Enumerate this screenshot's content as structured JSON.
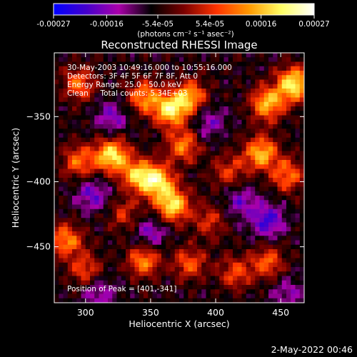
{
  "colorbar": {
    "ticks": [
      "-0.00027",
      "-0.00016",
      "-5.4e-05",
      "5.4e-05",
      "0.00016",
      "0.00027"
    ],
    "tick_values": [
      -0.00027,
      -0.00016,
      -5.4e-05,
      5.4e-05,
      0.00016,
      0.00027
    ],
    "range": [
      -0.00027,
      0.00027
    ],
    "units": "(photons cm⁻² s⁻¹ asec⁻²)",
    "colors": [
      "#0000ff",
      "#4400cc",
      "#aa00aa",
      "#000000",
      "#7a0000",
      "#ff3300",
      "#ff9900",
      "#ffff66",
      "#ffffff"
    ]
  },
  "chart_data": {
    "type": "heatmap",
    "title": "Reconstructed RHESSI Image",
    "xlabel": "Heliocentric X (arcsec)",
    "ylabel": "Heliocentric Y (arcsec)",
    "x_ticks": [
      300,
      350,
      400,
      450
    ],
    "y_ticks": [
      -350,
      -400,
      -450
    ],
    "xlim": [
      276,
      468
    ],
    "ylim": [
      -493,
      -301
    ],
    "annotations": [
      "30-May-2003 10:49:16.000 to 10:55:16.000",
      "Detectors: 3F 4F 5F 6F 7F 8F, Att 0",
      "Energy Range: 25.0 - 50.0 keV",
      "Clean     Total counts: 5.34E+03"
    ],
    "peak_label": "Position of Peak = [401,-341]",
    "peak": [
      401,
      -341
    ],
    "blobs": [
      {
        "x": 460,
        "y": -325,
        "v": 0.00027
      },
      {
        "x": 440,
        "y": -340,
        "v": 0.00022
      },
      {
        "x": 380,
        "y": -335,
        "v": 0.0002
      },
      {
        "x": 345,
        "y": -335,
        "v": 0.00018
      },
      {
        "x": 365,
        "y": -345,
        "v": 0.00024
      },
      {
        "x": 295,
        "y": -325,
        "v": 0.00015
      },
      {
        "x": 320,
        "y": -380,
        "v": 0.00026
      },
      {
        "x": 295,
        "y": -385,
        "v": 0.00016
      },
      {
        "x": 340,
        "y": -395,
        "v": 0.0002
      },
      {
        "x": 355,
        "y": -400,
        "v": 0.00024
      },
      {
        "x": 375,
        "y": -372,
        "v": 0.00017
      },
      {
        "x": 435,
        "y": -378,
        "v": 0.00022
      },
      {
        "x": 455,
        "y": -395,
        "v": 0.00016
      },
      {
        "x": 410,
        "y": -392,
        "v": 0.00012
      },
      {
        "x": 367,
        "y": -418,
        "v": 0.00025
      },
      {
        "x": 345,
        "y": -460,
        "v": 0.00018
      },
      {
        "x": 380,
        "y": -463,
        "v": 0.00014
      },
      {
        "x": 415,
        "y": -470,
        "v": 0.00013
      },
      {
        "x": 440,
        "y": -462,
        "v": 0.00015
      },
      {
        "x": 285,
        "y": -445,
        "v": 0.00018
      },
      {
        "x": 300,
        "y": -468,
        "v": 0.00013
      },
      {
        "x": 395,
        "y": -430,
        "v": 0.00011
      },
      {
        "x": 330,
        "y": -425,
        "v": 0.0001
      },
      {
        "x": 320,
        "y": -350,
        "v": -0.0001
      },
      {
        "x": 305,
        "y": -410,
        "v": -0.00012
      },
      {
        "x": 440,
        "y": -430,
        "v": -0.00015
      },
      {
        "x": 420,
        "y": -415,
        "v": -0.0001
      },
      {
        "x": 350,
        "y": -440,
        "v": -0.00011
      },
      {
        "x": 310,
        "y": -485,
        "v": -0.0001
      },
      {
        "x": 395,
        "y": -355,
        "v": -9e-05
      },
      {
        "x": 455,
        "y": -485,
        "v": -8e-05
      }
    ]
  },
  "footer": {
    "timestamp": "2-May-2022 00:46"
  }
}
